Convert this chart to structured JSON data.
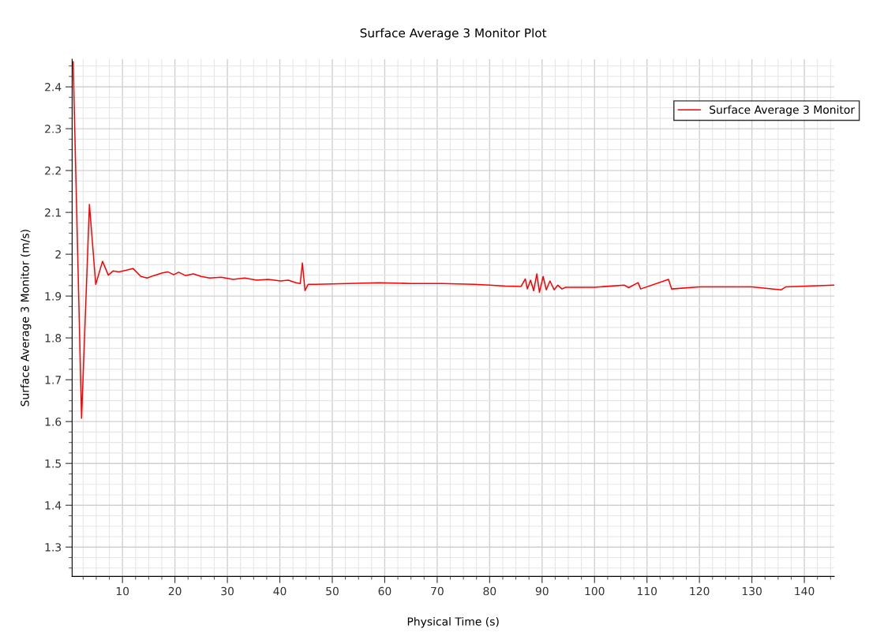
{
  "chart_data": {
    "type": "line",
    "title": "Surface Average 3 Monitor Plot",
    "xlabel": "Physical Time (s)",
    "ylabel": "Surface Average 3 Monitor (m/s)",
    "xlim": [
      0.4,
      145.7
    ],
    "ylim": [
      1.23,
      2.466
    ],
    "xticks": [
      10,
      20,
      30,
      40,
      50,
      60,
      70,
      80,
      90,
      100,
      110,
      120,
      130,
      140
    ],
    "yticks": [
      1.3,
      1.4,
      1.5,
      1.6,
      1.7,
      1.8,
      1.9,
      2,
      2.1,
      2.2,
      2.3,
      2.4
    ],
    "grid": true,
    "legend": "top right",
    "marker": "none",
    "line_style": "solid",
    "series": [
      {
        "name": "Surface Average 3 Monitor",
        "color": "#ff0000",
        "x": [
          0.6,
          2.2,
          3.7,
          4.9,
          6.2,
          7.3,
          8.2,
          9.3,
          10.8,
          12.0,
          13.5,
          14.7,
          16.0,
          17.5,
          18.6,
          19.8,
          20.7,
          22.0,
          23.5,
          25.0,
          26.6,
          28.8,
          31.1,
          33.3,
          35.6,
          37.8,
          40.1,
          41.6,
          43.1,
          43.9,
          44.3,
          44.8,
          45.4,
          46.9,
          53,
          59,
          65,
          71,
          77,
          80,
          83,
          86,
          86.8,
          87.2,
          87.8,
          88.4,
          89.0,
          89.5,
          90.2,
          90.8,
          91.5,
          92.3,
          93.0,
          93.8,
          94.5,
          100,
          105.7,
          106.5,
          108.3,
          108.8,
          114.1,
          114.7,
          120,
          130,
          135.6,
          136.5,
          145.7
        ],
        "values": [
          2.46,
          1.608,
          2.119,
          1.928,
          1.983,
          1.95,
          1.96,
          1.958,
          1.962,
          1.966,
          1.947,
          1.943,
          1.949,
          1.955,
          1.958,
          1.951,
          1.957,
          1.949,
          1.953,
          1.947,
          1.943,
          1.945,
          1.94,
          1.943,
          1.938,
          1.94,
          1.936,
          1.938,
          1.932,
          1.93,
          1.979,
          1.913,
          1.928,
          1.928,
          1.93,
          1.932,
          1.93,
          1.93,
          1.928,
          1.926,
          1.924,
          1.923,
          1.941,
          1.917,
          1.938,
          1.913,
          1.953,
          1.909,
          1.947,
          1.915,
          1.936,
          1.915,
          1.926,
          1.917,
          1.921,
          1.921,
          1.926,
          1.92,
          1.932,
          1.917,
          1.94,
          1.917,
          1.922,
          1.922,
          1.915,
          1.922,
          1.926
        ]
      }
    ]
  }
}
